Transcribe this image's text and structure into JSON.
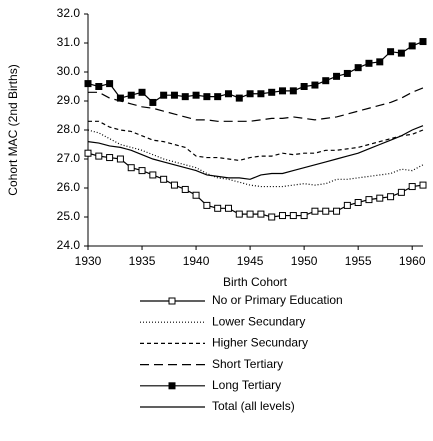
{
  "chart_data": {
    "type": "line",
    "x_label": "Birth Cohort",
    "y_label": "Cohort MAC (2nd Births)",
    "x": [
      1930,
      1931,
      1932,
      1933,
      1934,
      1935,
      1936,
      1937,
      1938,
      1939,
      1940,
      1941,
      1942,
      1943,
      1944,
      1945,
      1946,
      1947,
      1948,
      1949,
      1950,
      1951,
      1952,
      1953,
      1954,
      1955,
      1956,
      1957,
      1958,
      1959,
      1960,
      1961
    ],
    "xlim": [
      1930,
      1961
    ],
    "xticks": [
      1930,
      1935,
      1940,
      1945,
      1950,
      1955,
      1960
    ],
    "ylim": [
      24,
      32
    ],
    "yticks": [
      {
        "value": 24,
        "label": "24.0"
      },
      {
        "value": 25,
        "label": "25.0"
      },
      {
        "value": 26,
        "label": "26.0"
      },
      {
        "value": 27,
        "label": "27.0"
      },
      {
        "value": 28,
        "label": "28.0"
      },
      {
        "value": 29,
        "label": "29.0"
      },
      {
        "value": 30,
        "label": "30.0"
      },
      {
        "value": 31,
        "label": "31.0"
      },
      {
        "value": 32,
        "label": "32.0"
      }
    ],
    "grid": false,
    "legend": "bottom",
    "series": [
      {
        "name": "No or Primary Education",
        "color": "#000000",
        "dash": "none",
        "marker": "open-square",
        "values": [
          27.2,
          27.1,
          27.05,
          27.0,
          26.7,
          26.6,
          26.45,
          26.3,
          26.1,
          25.95,
          25.75,
          25.4,
          25.3,
          25.3,
          25.1,
          25.1,
          25.1,
          25.0,
          25.05,
          25.05,
          25.05,
          25.2,
          25.2,
          25.2,
          25.4,
          25.5,
          25.6,
          25.65,
          25.7,
          25.85,
          26.05,
          26.1
        ]
      },
      {
        "name": "Lower Secundary",
        "color": "#000000",
        "dash": "1,2",
        "marker": "none",
        "values": [
          28.0,
          27.9,
          27.7,
          27.5,
          27.4,
          27.3,
          27.15,
          27.0,
          26.9,
          26.8,
          26.7,
          26.5,
          26.35,
          26.3,
          26.2,
          26.1,
          26.05,
          26.05,
          26.05,
          26.1,
          26.15,
          26.1,
          26.15,
          26.3,
          26.3,
          26.35,
          26.4,
          26.45,
          26.5,
          26.65,
          26.6,
          26.8
        ]
      },
      {
        "name": "Higher Secundary",
        "color": "#000000",
        "dash": "4,3",
        "marker": "none",
        "values": [
          28.3,
          28.3,
          28.1,
          28.0,
          27.95,
          27.8,
          27.65,
          27.6,
          27.5,
          27.4,
          27.1,
          27.05,
          27.05,
          27.0,
          26.95,
          27.05,
          27.1,
          27.1,
          27.2,
          27.15,
          27.2,
          27.2,
          27.3,
          27.3,
          27.35,
          27.4,
          27.5,
          27.6,
          27.7,
          27.8,
          27.85,
          28.0
        ]
      },
      {
        "name": "Short Tertiary",
        "color": "#000000",
        "dash": "9,5",
        "marker": "none",
        "values": [
          29.3,
          29.3,
          29.1,
          29.0,
          28.9,
          28.8,
          28.75,
          28.65,
          28.55,
          28.45,
          28.35,
          28.35,
          28.3,
          28.3,
          28.3,
          28.3,
          28.35,
          28.4,
          28.4,
          28.45,
          28.4,
          28.35,
          28.4,
          28.45,
          28.55,
          28.65,
          28.75,
          28.85,
          28.95,
          29.1,
          29.3,
          29.45
        ]
      },
      {
        "name": "Long Tertiary",
        "color": "#000000",
        "dash": "none",
        "marker": "filled-square",
        "values": [
          29.6,
          29.5,
          29.6,
          29.1,
          29.2,
          29.3,
          28.95,
          29.2,
          29.2,
          29.15,
          29.2,
          29.15,
          29.15,
          29.25,
          29.1,
          29.25,
          29.25,
          29.3,
          29.35,
          29.35,
          29.5,
          29.55,
          29.7,
          29.85,
          29.95,
          30.15,
          30.3,
          30.35,
          30.7,
          30.65,
          30.9,
          31.05
        ]
      },
      {
        "name": "Total (all levels)",
        "color": "#000000",
        "dash": "none",
        "marker": "none",
        "values": [
          27.6,
          27.55,
          27.45,
          27.4,
          27.3,
          27.15,
          27.0,
          26.9,
          26.8,
          26.7,
          26.6,
          26.45,
          26.4,
          26.35,
          26.35,
          26.3,
          26.45,
          26.5,
          26.5,
          26.6,
          26.7,
          26.8,
          26.9,
          27.0,
          27.1,
          27.2,
          27.35,
          27.5,
          27.65,
          27.8,
          28.0,
          28.15
        ]
      }
    ]
  }
}
